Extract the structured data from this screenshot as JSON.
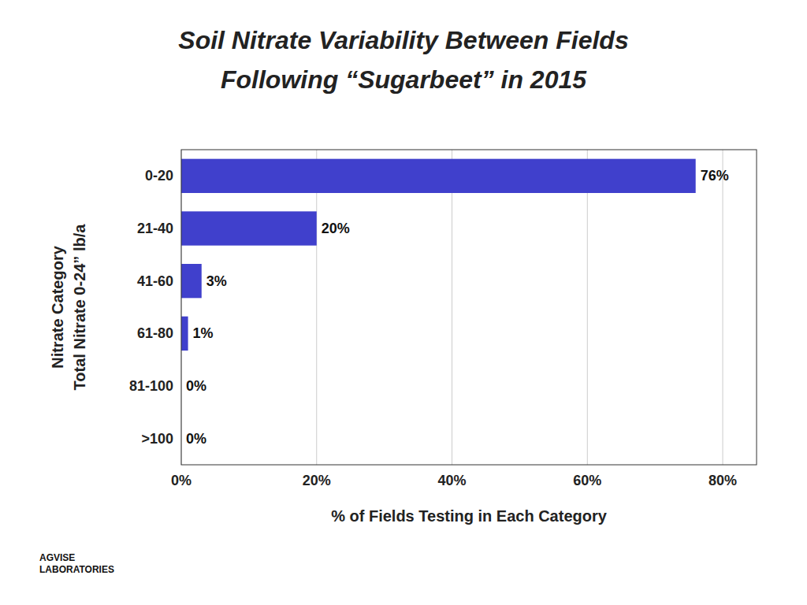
{
  "chart_data": {
    "type": "bar",
    "orientation": "horizontal",
    "title": "Soil Nitrate Variability Between Fields",
    "subtitle": "Following “Sugarbeet” in 2015",
    "categories": [
      ">100",
      "81-100",
      "61-80",
      "41-60",
      "21-40",
      "0-20"
    ],
    "values": [
      0,
      0,
      1,
      3,
      20,
      76
    ],
    "value_labels": [
      "0%",
      "0%",
      "1%",
      "3%",
      "20%",
      "76%"
    ],
    "data_labels": true,
    "color": "#4040CC",
    "ylabel": [
      "Nitrate Category",
      "Total Nitrate 0-24” lb/a"
    ],
    "xlabel": "% of Fields Testing in Each Category",
    "xlim": [
      0,
      85
    ],
    "xticks": [
      {
        "value": 0,
        "label": "0%"
      },
      {
        "value": 20,
        "label": "20%"
      },
      {
        "value": 40,
        "label": "40%"
      },
      {
        "value": 60,
        "label": "60%"
      },
      {
        "value": 80,
        "label": "80%"
      }
    ],
    "grid": true,
    "annotations": [
      "AGVISE\nLABORATORIES"
    ]
  }
}
